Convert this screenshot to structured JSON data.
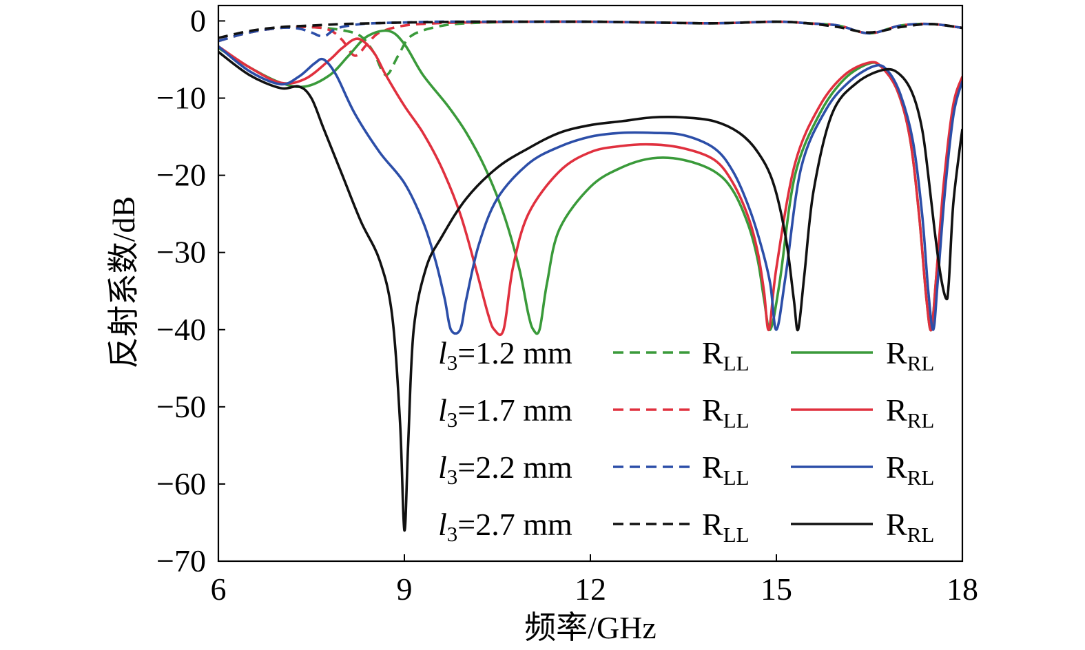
{
  "chart_data": {
    "type": "line",
    "title": "",
    "xlabel": "频率/GHz",
    "ylabel": "反射系数/dB",
    "xlim": [
      6,
      18
    ],
    "ylim": [
      -70,
      2
    ],
    "xticks": [
      6,
      9,
      12,
      15,
      18
    ],
    "yticks": [
      0,
      -10,
      -20,
      -30,
      -40,
      -50,
      -60,
      -70
    ],
    "xtick_labels": [
      "6",
      "9",
      "12",
      "15",
      "18"
    ],
    "ytick_labels": [
      "0",
      "−10",
      "−20",
      "−30",
      "−40",
      "−50",
      "−60",
      "−70"
    ],
    "grid": false,
    "legend_position": "bottom-right",
    "legend_rows": [
      {
        "param_var": "l",
        "param_sub": "3",
        "param_text": "=1.2 mm",
        "color": "#3a9a3a",
        "ll_main": "R",
        "ll_sub": "LL",
        "rl_main": "R",
        "rl_sub": "RL"
      },
      {
        "param_var": "l",
        "param_sub": "3",
        "param_text": "=1.7 mm",
        "color": "#e0303e",
        "ll_main": "R",
        "ll_sub": "LL",
        "rl_main": "R",
        "rl_sub": "RL"
      },
      {
        "param_var": "l",
        "param_sub": "3",
        "param_text": "=2.2 mm",
        "color": "#2c4ea8",
        "ll_main": "R",
        "ll_sub": "LL",
        "rl_main": "R",
        "rl_sub": "RL"
      },
      {
        "param_var": "l",
        "param_sub": "3",
        "param_text": "=2.7 mm",
        "color": "#111111",
        "ll_main": "R",
        "ll_sub": "LL",
        "rl_main": "R",
        "rl_sub": "RL"
      }
    ],
    "series": [
      {
        "style": "dashed",
        "color": "#3a9a3a",
        "x": [
          6,
          6.5,
          7,
          7.5,
          8,
          8.3,
          8.5,
          8.7,
          8.9,
          9.1,
          9.5,
          10,
          11,
          12,
          13,
          14,
          15,
          15.5,
          16,
          16.5,
          17,
          17.5,
          18
        ],
        "y": [
          -2.6,
          -1.5,
          -0.9,
          -0.8,
          -1.2,
          -2.0,
          -4.0,
          -7.0,
          -4.5,
          -2.0,
          -0.8,
          -0.3,
          -0.1,
          -0.1,
          -0.2,
          -0.3,
          -0.1,
          -0.3,
          -0.6,
          -1.6,
          -0.6,
          -0.4,
          -0.9
        ]
      },
      {
        "style": "dashed",
        "color": "#e0303e",
        "x": [
          6,
          6.5,
          7,
          7.5,
          7.8,
          8.0,
          8.2,
          8.4,
          8.6,
          9,
          9.5,
          10,
          11,
          12,
          13,
          14,
          15,
          15.5,
          16,
          16.5,
          17,
          17.5,
          18
        ],
        "y": [
          -2.6,
          -1.5,
          -0.9,
          -0.8,
          -1.2,
          -2.5,
          -4.5,
          -3.0,
          -1.5,
          -0.6,
          -0.3,
          -0.2,
          -0.1,
          -0.1,
          -0.2,
          -0.3,
          -0.1,
          -0.3,
          -0.6,
          -1.6,
          -0.6,
          -0.4,
          -0.9
        ]
      },
      {
        "style": "dashed",
        "color": "#2c4ea8",
        "x": [
          6,
          6.5,
          7,
          7.3,
          7.5,
          7.7,
          7.9,
          8.2,
          8.5,
          9,
          9.5,
          10,
          11,
          12,
          13,
          14,
          15,
          15.5,
          16,
          16.5,
          17,
          17.5,
          18
        ],
        "y": [
          -2.6,
          -1.5,
          -0.9,
          -1.0,
          -1.5,
          -2.0,
          -1.0,
          -0.5,
          -0.3,
          -0.2,
          -0.1,
          -0.1,
          -0.1,
          -0.1,
          -0.2,
          -0.3,
          -0.1,
          -0.3,
          -0.6,
          -1.6,
          -0.6,
          -0.4,
          -0.9
        ]
      },
      {
        "style": "dashed",
        "color": "#111111",
        "x": [
          6,
          6.5,
          7,
          7.5,
          8,
          8.5,
          9,
          9.5,
          10,
          11,
          12,
          13,
          14,
          15,
          15.5,
          16,
          16.5,
          17,
          17.5,
          18
        ],
        "y": [
          -2.2,
          -1.3,
          -0.8,
          -0.6,
          -0.4,
          -0.3,
          -0.2,
          -0.15,
          -0.1,
          -0.1,
          -0.1,
          -0.2,
          -0.3,
          -0.1,
          -0.3,
          -0.8,
          -1.5,
          -0.8,
          -0.4,
          -0.9
        ]
      },
      {
        "style": "solid",
        "color": "#3a9a3a",
        "x": [
          6,
          6.5,
          7,
          7.4,
          7.8,
          8.1,
          8.4,
          8.75,
          9.0,
          9.3,
          9.7,
          10.0,
          10.3,
          10.6,
          10.85,
          11.0,
          11.08,
          11.18,
          11.3,
          11.5,
          12,
          12.5,
          13,
          13.5,
          14,
          14.3,
          14.55,
          14.7,
          14.8,
          14.9,
          15.05,
          15.3,
          15.7,
          16.1,
          16.5,
          16.7,
          16.95,
          17.15,
          17.3,
          17.42,
          17.5,
          17.58,
          17.7,
          17.85,
          18
        ],
        "y": [
          -3.5,
          -6.0,
          -8.0,
          -8.5,
          -7.0,
          -4.5,
          -2.0,
          -1.3,
          -3.0,
          -7.0,
          -11.0,
          -14.5,
          -19.0,
          -25.0,
          -32.0,
          -38.0,
          -40.0,
          -40.0,
          -34.0,
          -27.0,
          -21.5,
          -19.0,
          -17.8,
          -18.0,
          -19.5,
          -22.0,
          -26.5,
          -31.0,
          -36.0,
          -40.0,
          -34.0,
          -20.0,
          -12.0,
          -7.5,
          -5.5,
          -6.0,
          -9.0,
          -15.0,
          -25.0,
          -36.0,
          -40.0,
          -33.0,
          -22.0,
          -12.0,
          -7.5
        ]
      },
      {
        "style": "solid",
        "color": "#e0303e",
        "x": [
          6,
          6.5,
          7,
          7.4,
          7.8,
          8.0,
          8.25,
          8.5,
          8.7,
          9.0,
          9.3,
          9.6,
          9.9,
          10.15,
          10.35,
          10.45,
          10.6,
          10.75,
          11.0,
          11.5,
          12,
          12.5,
          13,
          13.5,
          14,
          14.3,
          14.55,
          14.7,
          14.8,
          14.88,
          15.0,
          15.3,
          15.7,
          16.1,
          16.5,
          16.7,
          16.95,
          17.15,
          17.3,
          17.42,
          17.5,
          17.58,
          17.7,
          17.85,
          18
        ],
        "y": [
          -3.3,
          -6.0,
          -8.0,
          -7.5,
          -5.0,
          -3.5,
          -2.3,
          -4.0,
          -7.0,
          -11.0,
          -14.5,
          -19.0,
          -25.0,
          -32.0,
          -38.0,
          -40.0,
          -40.0,
          -32.0,
          -25.0,
          -19.5,
          -17.0,
          -16.2,
          -16.0,
          -16.5,
          -18.0,
          -21.0,
          -25.5,
          -30.0,
          -35.0,
          -40.0,
          -32.0,
          -18.5,
          -11.0,
          -7.0,
          -5.4,
          -6.0,
          -9.0,
          -15.0,
          -25.0,
          -36.0,
          -40.0,
          -33.0,
          -21.0,
          -11.0,
          -7.2
        ]
      },
      {
        "style": "solid",
        "color": "#2c4ea8",
        "x": [
          6,
          6.5,
          7,
          7.3,
          7.55,
          7.7,
          7.9,
          8.2,
          8.6,
          9.0,
          9.3,
          9.5,
          9.65,
          9.75,
          9.9,
          10.0,
          10.2,
          10.5,
          11,
          11.5,
          12,
          12.5,
          13,
          13.5,
          14,
          14.3,
          14.55,
          14.75,
          14.9,
          15.0,
          15.15,
          15.4,
          15.8,
          16.2,
          16.6,
          16.8,
          17.0,
          17.2,
          17.35,
          17.45,
          17.53,
          17.6,
          17.72,
          17.86,
          18
        ],
        "y": [
          -3.3,
          -6.5,
          -8.2,
          -7.2,
          -5.5,
          -5.0,
          -7.0,
          -12.0,
          -17.0,
          -21.0,
          -26.0,
          -31.0,
          -36.0,
          -40.0,
          -40.0,
          -36.0,
          -29.0,
          -23.0,
          -18.5,
          -16.3,
          -15.0,
          -14.5,
          -14.5,
          -14.8,
          -16.5,
          -19.5,
          -24.0,
          -29.0,
          -34.0,
          -40.0,
          -33.0,
          -19.0,
          -11.5,
          -7.7,
          -5.8,
          -6.5,
          -9.5,
          -15.5,
          -25.0,
          -35.0,
          -40.0,
          -34.0,
          -22.0,
          -12.0,
          -7.8
        ]
      },
      {
        "style": "solid",
        "color": "#111111",
        "x": [
          6,
          6.5,
          7,
          7.3,
          7.5,
          7.7,
          8.0,
          8.3,
          8.6,
          8.8,
          8.93,
          9.0,
          9.06,
          9.15,
          9.35,
          9.6,
          10,
          10.5,
          11,
          11.5,
          12,
          12.5,
          13,
          13.5,
          14,
          14.4,
          14.7,
          14.95,
          15.15,
          15.28,
          15.35,
          15.45,
          15.6,
          15.9,
          16.3,
          16.75,
          17.0,
          17.2,
          17.35,
          17.45,
          17.55,
          17.65,
          17.74,
          17.78,
          17.85,
          17.95,
          18
        ],
        "y": [
          -4.0,
          -7.0,
          -8.7,
          -8.5,
          -10.0,
          -14.0,
          -20.0,
          -26.0,
          -31.0,
          -38.0,
          -52.0,
          -66.0,
          -55.0,
          -40.0,
          -32.0,
          -28.0,
          -23.0,
          -19.0,
          -16.5,
          -14.5,
          -13.5,
          -13.0,
          -12.5,
          -12.5,
          -13.0,
          -14.5,
          -17.0,
          -21.0,
          -28.0,
          -36.0,
          -40.0,
          -33.0,
          -22.0,
          -12.0,
          -8.0,
          -6.3,
          -7.0,
          -9.5,
          -14.0,
          -20.0,
          -27.0,
          -33.0,
          -36.0,
          -34.0,
          -24.0,
          -17.0,
          -14.0
        ]
      }
    ]
  }
}
